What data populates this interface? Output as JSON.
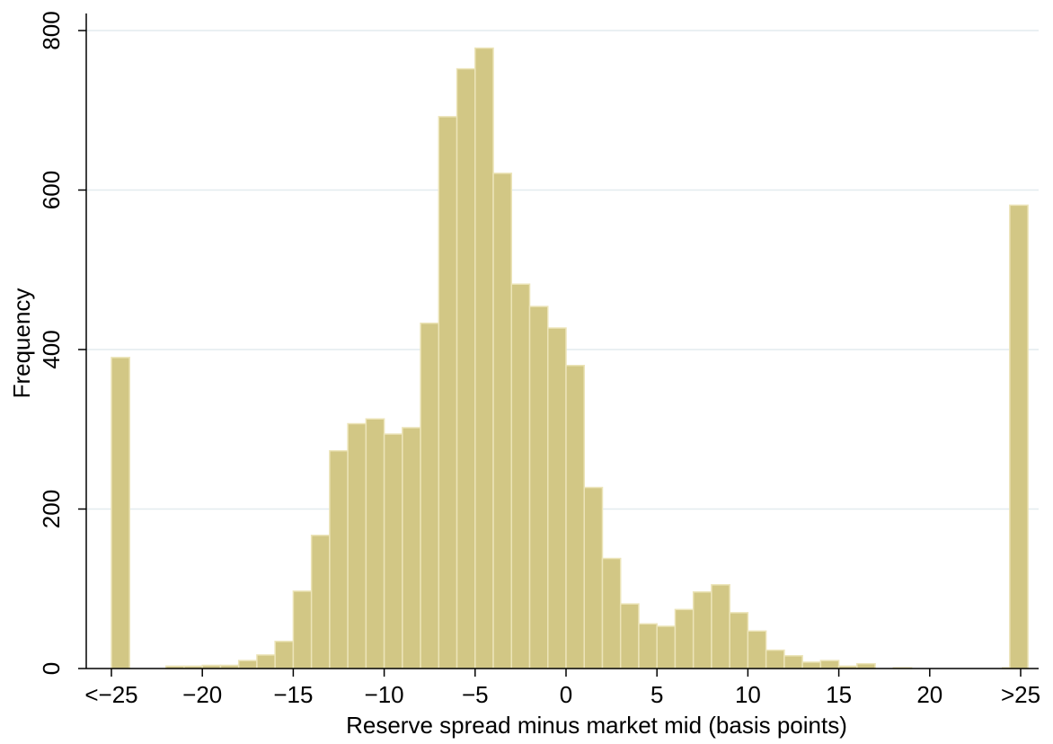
{
  "chart_data": {
    "type": "bar",
    "title": "",
    "xlabel": "Reserve spread minus market mid (basis points)",
    "ylabel": "Frequency",
    "xlim": [
      -26.5,
      26
    ],
    "ylim": [
      0,
      800
    ],
    "grid": true,
    "bar_color": "#d2c785",
    "bar_edge_color": "#ece4b8",
    "grid_color": "#e3ecef",
    "x_ticks": [
      {
        "value": -25,
        "label": "<−25"
      },
      {
        "value": -20,
        "label": "−20"
      },
      {
        "value": -15,
        "label": "−15"
      },
      {
        "value": -10,
        "label": "−10"
      },
      {
        "value": -5,
        "label": "−5"
      },
      {
        "value": 0,
        "label": "0"
      },
      {
        "value": 5,
        "label": "5"
      },
      {
        "value": 10,
        "label": "10"
      },
      {
        "value": 15,
        "label": "15"
      },
      {
        "value": 20,
        "label": "20"
      },
      {
        "value": 25,
        "label": ">25"
      }
    ],
    "y_ticks": [
      {
        "value": 0,
        "label": "0"
      },
      {
        "value": 200,
        "label": "200"
      },
      {
        "value": 400,
        "label": "400"
      },
      {
        "value": 600,
        "label": "600"
      },
      {
        "value": 800,
        "label": "800"
      }
    ],
    "bin_width": 1,
    "bins": [
      {
        "x": -25,
        "value": 390
      },
      {
        "x": -22,
        "value": 3
      },
      {
        "x": -21,
        "value": 3
      },
      {
        "x": -20,
        "value": 4
      },
      {
        "x": -19,
        "value": 4
      },
      {
        "x": -18,
        "value": 10
      },
      {
        "x": -17,
        "value": 17
      },
      {
        "x": -16,
        "value": 34
      },
      {
        "x": -15,
        "value": 97
      },
      {
        "x": -14,
        "value": 167
      },
      {
        "x": -13,
        "value": 273
      },
      {
        "x": -12,
        "value": 307
      },
      {
        "x": -11,
        "value": 313
      },
      {
        "x": -10,
        "value": 294
      },
      {
        "x": -9,
        "value": 302
      },
      {
        "x": -8,
        "value": 433
      },
      {
        "x": -7,
        "value": 692
      },
      {
        "x": -6,
        "value": 752
      },
      {
        "x": -5,
        "value": 778
      },
      {
        "x": -4,
        "value": 621
      },
      {
        "x": -3,
        "value": 482
      },
      {
        "x": -2,
        "value": 454
      },
      {
        "x": -1,
        "value": 427
      },
      {
        "x": 0,
        "value": 380
      },
      {
        "x": 1,
        "value": 227
      },
      {
        "x": 2,
        "value": 138
      },
      {
        "x": 3,
        "value": 81
      },
      {
        "x": 4,
        "value": 56
      },
      {
        "x": 5,
        "value": 53
      },
      {
        "x": 6,
        "value": 74
      },
      {
        "x": 7,
        "value": 96
      },
      {
        "x": 8,
        "value": 105
      },
      {
        "x": 9,
        "value": 70
      },
      {
        "x": 10,
        "value": 47
      },
      {
        "x": 11,
        "value": 23
      },
      {
        "x": 12,
        "value": 16
      },
      {
        "x": 13,
        "value": 8
      },
      {
        "x": 14,
        "value": 10
      },
      {
        "x": 15,
        "value": 3
      },
      {
        "x": 16,
        "value": 6
      },
      {
        "x": 18,
        "value": 1
      },
      {
        "x": 24,
        "value": 1
      },
      {
        "x": 25,
        "value": 581
      }
    ]
  }
}
